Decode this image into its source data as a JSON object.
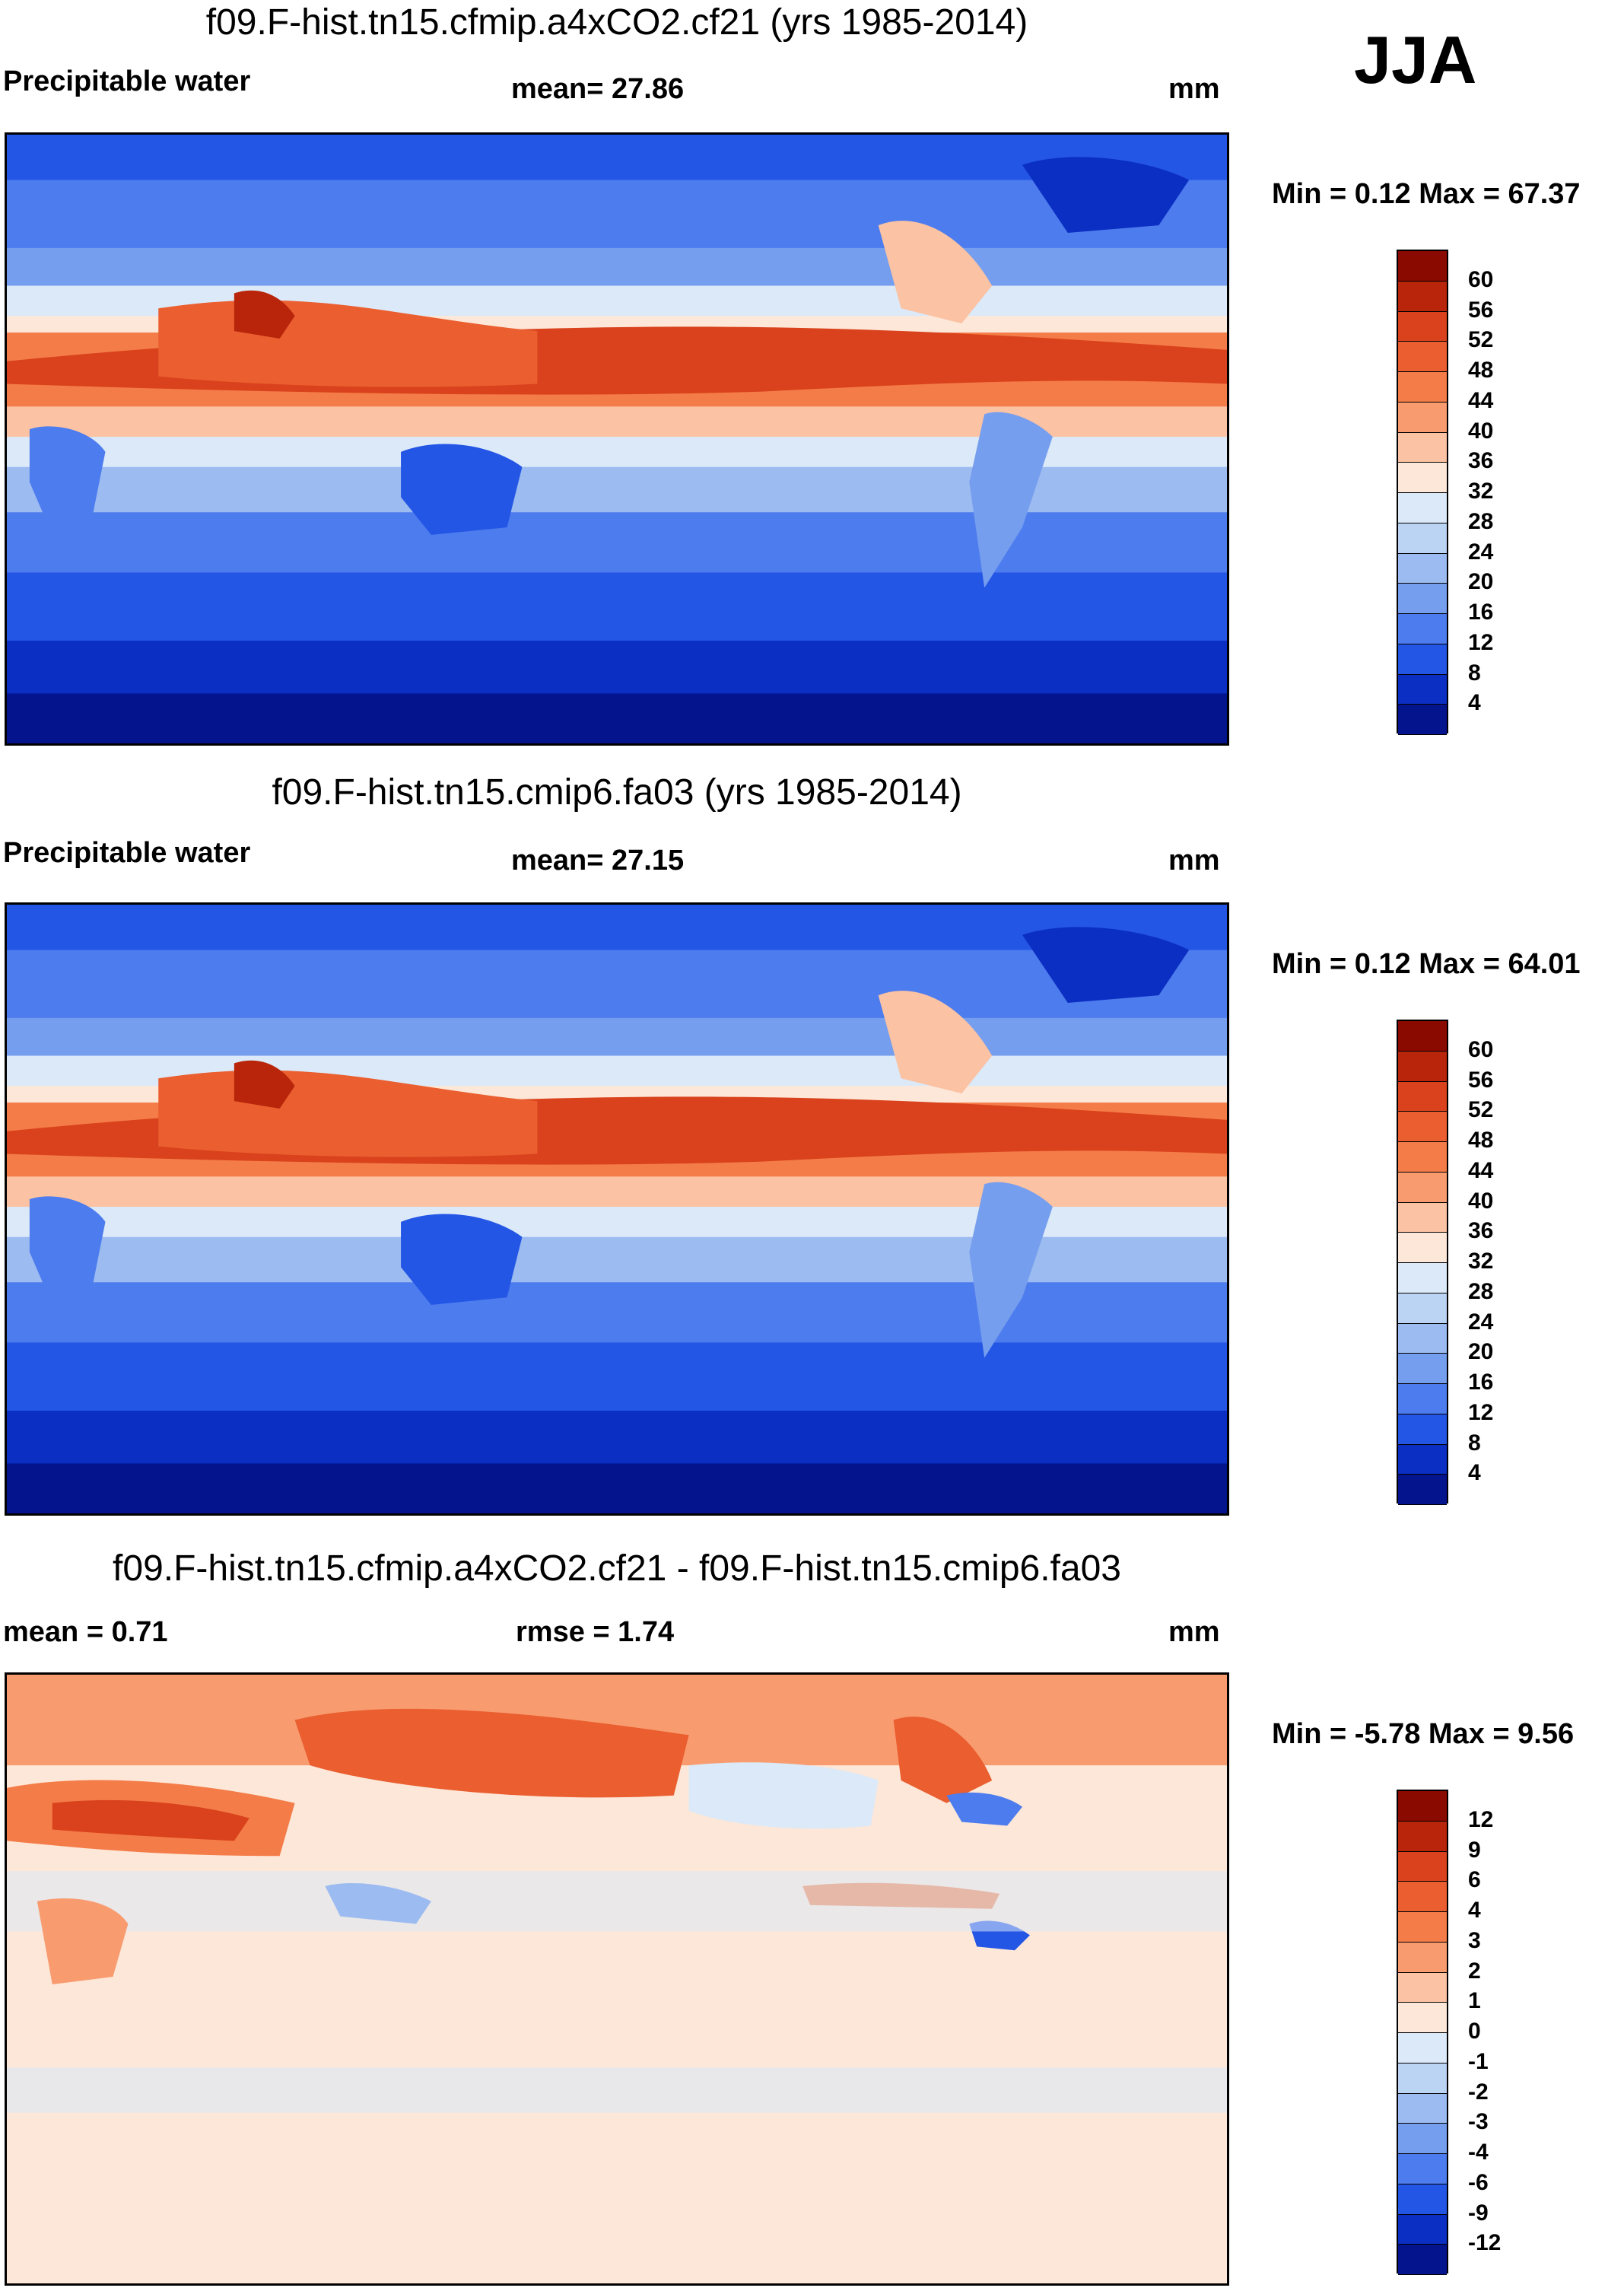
{
  "season": "JJA",
  "units_label": "mm",
  "panels": [
    {
      "title": "f09.F-hist.tn15.cfmip.a4xCO2.cf21 (yrs 1985-2014)",
      "variable": "Precipitable water",
      "stat1": "mean=  27.86",
      "stat2": "",
      "units": "mm",
      "minmax": "Min =   0.12 Max =  67.37",
      "colorbar_labels": [
        "60",
        "56",
        "52",
        "48",
        "44",
        "40",
        "36",
        "32",
        "28",
        "24",
        "20",
        "16",
        "12",
        "8",
        "4"
      ],
      "colors": [
        "#8b0a00",
        "#b8250a",
        "#d9421c",
        "#ea5e2f",
        "#f47c48",
        "#f89c70",
        "#fbc2a3",
        "#fde7d8",
        "#dbe9f8",
        "#bcd4f4",
        "#9cbbf0",
        "#769eee",
        "#4d7cee",
        "#2456e6",
        "#0b2ec3",
        "#03148c"
      ],
      "chart_data": {
        "type": "heatmap",
        "title": "f09.F-hist.tn15.cfmip.a4xCO2.cf21 (yrs 1985-2014)",
        "variable": "Precipitable water",
        "mean": 27.86,
        "min": 0.12,
        "max": 67.37,
        "units": "mm",
        "levels": [
          4,
          8,
          12,
          16,
          20,
          24,
          28,
          32,
          36,
          40,
          44,
          48,
          52,
          56,
          60
        ]
      }
    },
    {
      "title": "f09.F-hist.tn15.cmip6.fa03 (yrs 1985-2014)",
      "variable": "Precipitable water",
      "stat1": "mean=  27.15",
      "stat2": "",
      "units": "mm",
      "minmax": "Min =   0.12 Max =  64.01",
      "colorbar_labels": [
        "60",
        "56",
        "52",
        "48",
        "44",
        "40",
        "36",
        "32",
        "28",
        "24",
        "20",
        "16",
        "12",
        "8",
        "4"
      ],
      "colors": [
        "#8b0a00",
        "#b8250a",
        "#d9421c",
        "#ea5e2f",
        "#f47c48",
        "#f89c70",
        "#fbc2a3",
        "#fde7d8",
        "#dbe9f8",
        "#bcd4f4",
        "#9cbbf0",
        "#769eee",
        "#4d7cee",
        "#2456e6",
        "#0b2ec3",
        "#03148c"
      ],
      "chart_data": {
        "type": "heatmap",
        "title": "f09.F-hist.tn15.cmip6.fa03 (yrs 1985-2014)",
        "variable": "Precipitable water",
        "mean": 27.15,
        "min": 0.12,
        "max": 64.01,
        "units": "mm",
        "levels": [
          4,
          8,
          12,
          16,
          20,
          24,
          28,
          32,
          36,
          40,
          44,
          48,
          52,
          56,
          60
        ]
      }
    },
    {
      "title": "f09.F-hist.tn15.cfmip.a4xCO2.cf21 - f09.F-hist.tn15.cmip6.fa03",
      "variable": "mean =   0.71",
      "stat1": "rmse =   1.74",
      "stat2": "",
      "units": "mm",
      "minmax": "Min =  -5.78 Max =   9.56",
      "colorbar_labels": [
        "12",
        "9",
        "6",
        "4",
        "3",
        "2",
        "1",
        "0",
        "-1",
        "-2",
        "-3",
        "-4",
        "-6",
        "-9",
        "-12"
      ],
      "colors": [
        "#8b0a00",
        "#b8250a",
        "#d9421c",
        "#ea5e2f",
        "#f47c48",
        "#f89c70",
        "#fbc2a3",
        "#fde7d8",
        "#dbe9f8",
        "#bcd4f4",
        "#9cbbf0",
        "#769eee",
        "#4d7cee",
        "#2456e6",
        "#0b2ec3",
        "#03148c"
      ],
      "chart_data": {
        "type": "heatmap",
        "title": "f09.F-hist.tn15.cfmip.a4xCO2.cf21 - f09.F-hist.tn15.cmip6.fa03",
        "mean": 0.71,
        "rmse": 1.74,
        "min": -5.78,
        "max": 9.56,
        "units": "mm",
        "levels": [
          -12,
          -9,
          -6,
          -4,
          -3,
          -2,
          -1,
          0,
          1,
          2,
          3,
          4,
          6,
          9,
          12
        ]
      }
    }
  ]
}
